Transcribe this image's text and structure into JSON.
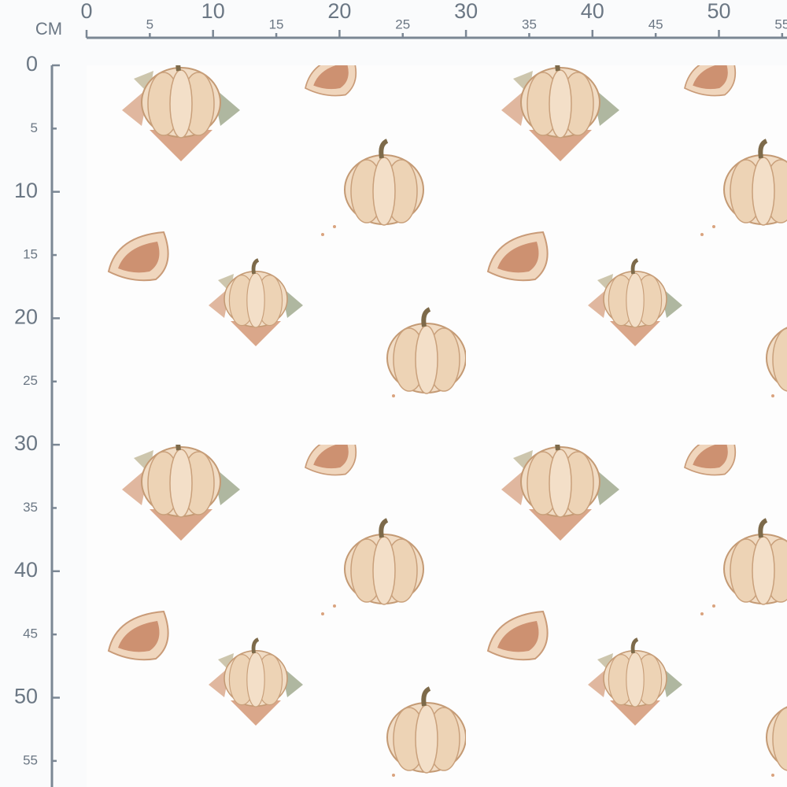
{
  "ruler": {
    "unit": "CM",
    "top": [
      0,
      5,
      10,
      15,
      20,
      25,
      30,
      35,
      40,
      45,
      50,
      55
    ],
    "left": [
      0,
      5,
      10,
      15,
      20,
      25,
      30,
      35,
      40,
      45,
      50,
      55
    ]
  }
}
